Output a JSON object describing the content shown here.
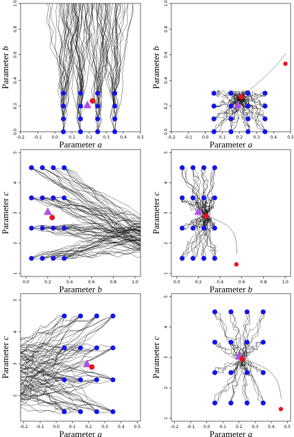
{
  "colors": {
    "grid_points": "#1414e6",
    "red_points": "#e8141e",
    "triangle": "#b24de6",
    "paths": "#000000"
  },
  "axis_labels": {
    "a": {
      "prefix": "Parameter ",
      "var": "a"
    },
    "b": {
      "prefix": "Parameter ",
      "var": "b"
    },
    "c": {
      "prefix": "Parameter ",
      "var": "c"
    }
  },
  "chart_data": [
    {
      "id": "p1",
      "type": "scatter",
      "xkey": "a",
      "ykey": "b",
      "xlim": [
        -0.2,
        0.5
      ],
      "ylim": [
        0,
        1
      ],
      "xticks": [
        "-0.2",
        "-0.1",
        "0.0",
        "0.1",
        "0.2",
        "0.3",
        "0.4",
        "0.5"
      ],
      "yticks": [
        "0.0",
        "0.2",
        "0.4",
        "0.6",
        "0.8",
        "1.0"
      ],
      "grid_x": [
        0.05,
        0.15,
        0.25,
        0.35
      ],
      "grid_y": [
        0.0,
        0.1,
        0.2,
        0.3
      ],
      "red_points": [
        [
          0.22,
          0.24
        ]
      ],
      "triangle": [
        0.19,
        0.21
      ]
    },
    {
      "id": "p2",
      "type": "scatter",
      "xkey": "a",
      "ykey": "b",
      "xlim": [
        -0.2,
        0.5
      ],
      "ylim": [
        0,
        1
      ],
      "xticks": [
        "-0.2",
        "-0.1",
        "0.0",
        "0.1",
        "0.2",
        "0.3",
        "0.4",
        "0.5"
      ],
      "yticks": [
        "0.0",
        "0.2",
        "0.4",
        "0.6",
        "0.8",
        "1.0"
      ],
      "grid_x": [
        0.05,
        0.15,
        0.25,
        0.35
      ],
      "grid_y": [
        0.0,
        0.1,
        0.2,
        0.3
      ],
      "red_points": [
        [
          0.21,
          0.27
        ],
        [
          0.47,
          0.53
        ]
      ],
      "triangle": [
        0.19,
        0.21
      ]
    },
    {
      "id": "p3",
      "type": "scatter",
      "xkey": "b",
      "ykey": "c",
      "xlim": [
        -0.05,
        1.05
      ],
      "ylim": [
        0.9,
        5.1
      ],
      "xticks": [
        "0.0",
        "0.2",
        "0.4",
        "0.6",
        "0.8",
        "1.0"
      ],
      "yticks": [
        "1",
        "2",
        "3",
        "4",
        "5"
      ],
      "grid_x": [
        0.05,
        0.15,
        0.25,
        0.35
      ],
      "grid_y": [
        1.5,
        2.5,
        3.5,
        4.5
      ],
      "red_points": [
        [
          0.24,
          2.85
        ]
      ],
      "triangle": [
        0.2,
        3.05
      ]
    },
    {
      "id": "p4",
      "type": "scatter",
      "xkey": "b",
      "ykey": "c",
      "xlim": [
        -0.05,
        1.05
      ],
      "ylim": [
        0.9,
        5.1
      ],
      "xticks": [
        "0.0",
        "0.2",
        "0.4",
        "0.6",
        "0.8",
        "1.0"
      ],
      "yticks": [
        "1",
        "2",
        "3",
        "4",
        "5"
      ],
      "grid_x": [
        0.05,
        0.15,
        0.25,
        0.35
      ],
      "grid_y": [
        1.5,
        2.5,
        3.5,
        4.5
      ],
      "red_points": [
        [
          0.27,
          2.9
        ],
        [
          0.55,
          1.3
        ]
      ],
      "triangle": [
        0.2,
        3.05
      ]
    },
    {
      "id": "p5",
      "type": "scatter",
      "xkey": "a",
      "ykey": "c",
      "xlim": [
        -0.22,
        0.52
      ],
      "ylim": [
        1.2,
        5.2
      ],
      "xticks": [
        "-0.2",
        "-0.1",
        "0.0",
        "0.1",
        "0.2",
        "0.3",
        "0.4",
        "0.5"
      ],
      "yticks": [
        "2",
        "3",
        "4",
        "5"
      ],
      "grid_x": [
        0.05,
        0.15,
        0.25,
        0.35
      ],
      "grid_y": [
        1.5,
        2.5,
        3.5,
        4.5
      ],
      "red_points": [
        [
          0.22,
          2.9
        ]
      ],
      "triangle": [
        0.19,
        3.0
      ]
    },
    {
      "id": "p6",
      "type": "scatter",
      "xkey": "a",
      "ykey": "c",
      "xlim": [
        -0.22,
        0.52
      ],
      "ylim": [
        0.9,
        5.1
      ],
      "xticks": [
        "-0.2",
        "-0.1",
        "0.0",
        "0.1",
        "0.2",
        "0.3",
        "0.4",
        "0.5"
      ],
      "yticks": [
        "1",
        "2",
        "3",
        "4",
        "5"
      ],
      "grid_x": [
        0.05,
        0.15,
        0.25,
        0.35
      ],
      "grid_y": [
        1.5,
        2.5,
        3.5,
        4.5
      ],
      "red_points": [
        [
          0.22,
          2.95
        ],
        [
          0.46,
          1.3
        ]
      ],
      "triangle": [
        0.2,
        3.05
      ]
    }
  ]
}
